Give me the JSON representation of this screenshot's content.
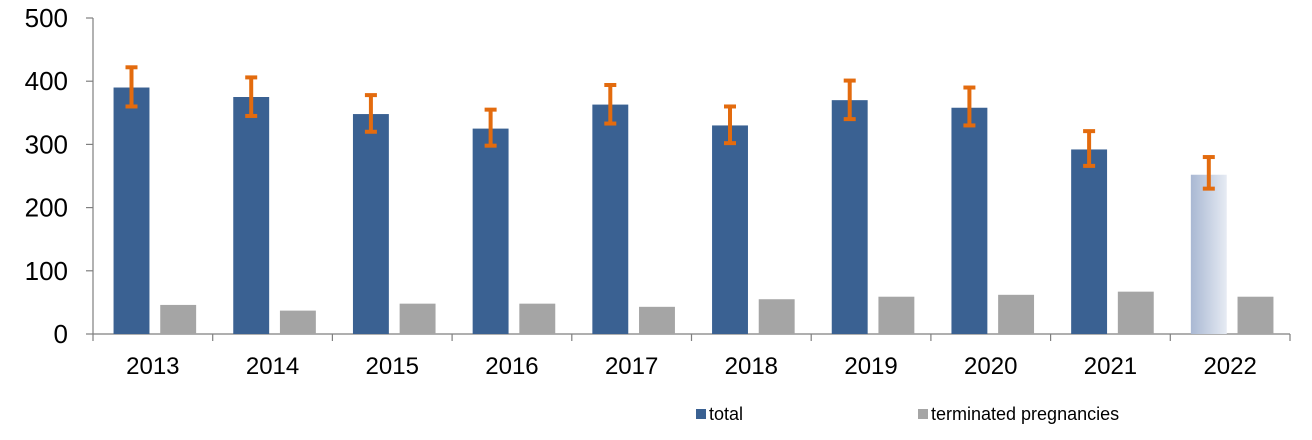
{
  "chart_data": {
    "type": "bar",
    "title": "",
    "xlabel": "",
    "ylabel": "",
    "categories": [
      "2013",
      "2014",
      "2015",
      "2016",
      "2017",
      "2018",
      "2019",
      "2020",
      "2021",
      "2022"
    ],
    "ylim": [
      0,
      500
    ],
    "yticks": [
      0,
      100,
      200,
      300,
      400,
      500
    ],
    "grid": false,
    "legend_position": "bottom",
    "series": [
      {
        "name": "total",
        "color": "#3a6192",
        "highlight_last_color": "#c8d2e4",
        "values": [
          390,
          375,
          348,
          325,
          363,
          330,
          370,
          358,
          292,
          252
        ],
        "error_low": [
          360,
          345,
          320,
          298,
          333,
          302,
          340,
          330,
          266,
          230
        ],
        "error_high": [
          422,
          406,
          378,
          355,
          394,
          360,
          401,
          390,
          321,
          280
        ],
        "error_color": "#e36b0e"
      },
      {
        "name": "terminated pregnancies",
        "color": "#a5a5a5",
        "values": [
          46,
          37,
          48,
          48,
          43,
          55,
          59,
          62,
          67,
          59
        ]
      }
    ]
  }
}
